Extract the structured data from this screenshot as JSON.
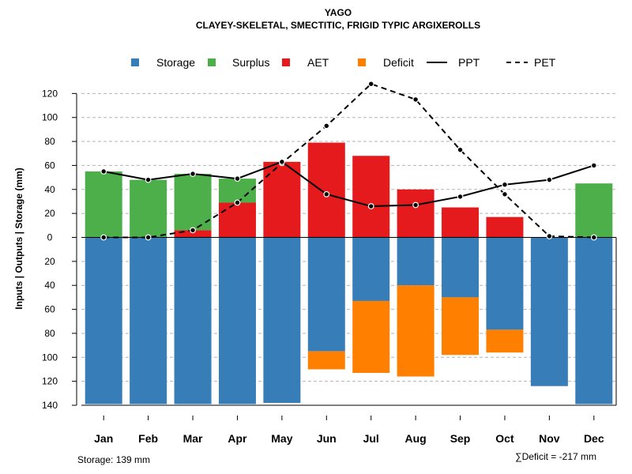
{
  "chart_data": {
    "type": "bar",
    "title": "YAGO",
    "subtitle": "CLAYEY-SKELETAL, SMECTITIC, FRIGID TYPIC ARGIXEROLLS",
    "ylabel": "Inputs | Outputs | Storage    (mm)",
    "ylim": [
      -140,
      130
    ],
    "yticks": [
      120,
      100,
      80,
      60,
      40,
      20,
      0,
      -20,
      -40,
      -60,
      -80,
      -100,
      -120,
      -140
    ],
    "ytick_labels": [
      "120",
      "100",
      "80",
      "60",
      "40",
      "20",
      "0",
      "20",
      "40",
      "60",
      "80",
      "100",
      "120",
      "140"
    ],
    "categories": [
      "Jan",
      "Feb",
      "Mar",
      "Apr",
      "May",
      "Jun",
      "Jul",
      "Aug",
      "Sep",
      "Oct",
      "Nov",
      "Dec"
    ],
    "legend": [
      {
        "name": "Storage",
        "kind": "box",
        "color": "#377EB8"
      },
      {
        "name": "Surplus",
        "kind": "box",
        "color": "#4DAF4A"
      },
      {
        "name": "AET",
        "kind": "box",
        "color": "#E41A1C"
      },
      {
        "name": "Deficit",
        "kind": "box",
        "color": "#FF7F00"
      },
      {
        "name": "PPT",
        "kind": "solid",
        "color": "#000000"
      },
      {
        "name": "PET",
        "kind": "dashed",
        "color": "#000000"
      }
    ],
    "series": [
      {
        "name": "AET",
        "color": "#E41A1C",
        "values": [
          0,
          0,
          6,
          29,
          63,
          79,
          68,
          40,
          25,
          17,
          0,
          0
        ]
      },
      {
        "name": "Surplus",
        "color": "#4DAF4A",
        "values": [
          55,
          48,
          47,
          20,
          0,
          0,
          0,
          0,
          0,
          0,
          0,
          45
        ]
      },
      {
        "name": "Storage",
        "color": "#377EB8",
        "values": [
          139,
          139,
          139,
          139,
          138,
          95,
          53,
          40,
          50,
          77,
          124,
          139
        ]
      },
      {
        "name": "Deficit",
        "color": "#FF7F00",
        "values": [
          0,
          0,
          0,
          0,
          0,
          15,
          60,
          76,
          48,
          19,
          0,
          0
        ]
      },
      {
        "name": "PPT",
        "color": "#000000",
        "values": [
          55,
          48,
          53,
          49,
          63,
          36,
          26,
          27,
          34,
          44,
          48,
          60
        ]
      },
      {
        "name": "PET",
        "color": "#000000",
        "values": [
          0,
          0,
          6,
          29,
          62,
          93,
          128,
          115,
          73,
          36,
          1,
          0
        ]
      }
    ],
    "grid": true,
    "footer_left": "Storage: 139 mm",
    "footer_right": "∑Deficit = -217 mm"
  }
}
